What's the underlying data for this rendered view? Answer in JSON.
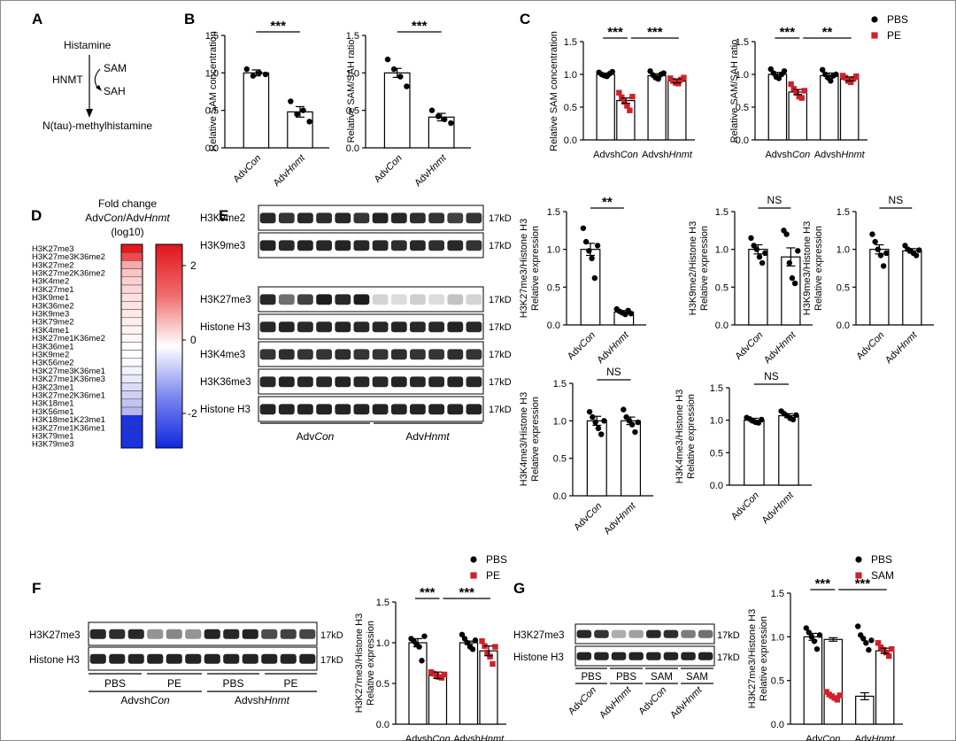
{
  "panels": {
    "A": {
      "label": "A",
      "histamine": "Histamine",
      "hnmt": "HNMT",
      "sam": "SAM",
      "sah": "SAH",
      "product": "N(tau)-methylhistamine"
    },
    "B": {
      "label": "B"
    },
    "C": {
      "label": "C"
    },
    "D": {
      "label": "D",
      "title_line1": "Fold change",
      "title_line2_a": "Adv",
      "title_line2_b": "Con",
      "title_line2_c": "/Adv",
      "title_line2_d": "Hnmt",
      "title_line3": "(log10)",
      "scale_ticks": [
        "2",
        "0",
        "-2"
      ]
    },
    "E": {
      "label": "E",
      "group_left_a": "Adv",
      "group_left_b": "Con",
      "group_right_a": "Adv",
      "group_right_b": "Hnmt"
    },
    "F": {
      "label": "F",
      "group_left_a": "Advsh",
      "group_left_b": "Con",
      "group_right_a": "Advsh",
      "group_right_b": "Hnmt",
      "treat": [
        "PBS",
        "PE",
        "PBS",
        "PE"
      ]
    },
    "G": {
      "label": "G",
      "treat": [
        "PBS",
        "PBS",
        "SAM",
        "SAM"
      ],
      "xgroups": [
        [
          "Adv",
          "Con"
        ],
        [
          "Adv",
          "Hnmt"
        ],
        [
          "Adv",
          "Con"
        ],
        [
          "Adv",
          "Hnmt"
        ]
      ]
    }
  },
  "legends": {
    "C": [
      "PBS",
      "PE"
    ],
    "F": [
      "PBS",
      "PE"
    ],
    "G": [
      "PBS",
      "SAM"
    ]
  },
  "colors": {
    "black": "#000000",
    "red": "#d0202a",
    "heat_high": "#d7191c",
    "heat_low": "#1f32d8"
  },
  "blots": {
    "E": [
      "H3K9me2",
      "H3K9me3",
      "H3K27me3",
      "Histone H3",
      "H3K4me3",
      "H3K36me3",
      "Histone H3"
    ],
    "F": [
      "H3K27me3",
      "Histone H3"
    ],
    "G": [
      "H3K27me3",
      "Histone H3"
    ],
    "kd": "17kD"
  },
  "heatmap_rows": [
    "H3K27me3",
    "H3K27me3K36me2",
    "H3K27me2",
    "H3K27me2K36me2",
    "H3K4me2",
    "H3K27me1",
    "H3K9me1",
    "H3K36me2",
    "H3K9me3",
    "H3K79me2",
    "H3K4me1",
    "H3K27me1K36me2",
    "H3K36me1",
    "H3K9me2",
    "H3K56me2",
    "H3K27me3K36me1",
    "H3K27me1K36me3",
    "H3K23me1",
    "H3K27me2K36me1",
    "H3K18me1",
    "H3K56me1",
    "H3K18me1K23me1",
    "H3K27me1K36me1",
    "H3K79me1",
    "H3K79me3"
  ],
  "chart_data": [
    {
      "id": "B1",
      "type": "bar",
      "ylabel": "Relative SAM concentration",
      "ylim": [
        0,
        1.5
      ],
      "yticks": [
        "0.0",
        "0.5",
        "1.0",
        "1.5"
      ],
      "categories": [
        [
          "Adv",
          "Con"
        ],
        [
          "Adv",
          "Hnmt"
        ]
      ],
      "values": [
        1.0,
        0.48
      ],
      "sem": [
        0.04,
        0.07
      ],
      "points": [
        [
          1.05,
          0.96,
          1.0,
          0.98
        ],
        [
          0.62,
          0.45,
          0.5,
          0.35
        ]
      ],
      "significance": "***"
    },
    {
      "id": "B2",
      "type": "bar",
      "ylabel": "Relative SAM/SAH ratio",
      "ylim": [
        0,
        1.5
      ],
      "yticks": [
        "0.0",
        "0.5",
        "1.0",
        "1.5"
      ],
      "categories": [
        [
          "Adv",
          "Con"
        ],
        [
          "Adv",
          "Hnmt"
        ]
      ],
      "values": [
        1.0,
        0.41
      ],
      "sem": [
        0.06,
        0.05
      ],
      "points": [
        [
          1.18,
          1.05,
          0.95,
          0.82
        ],
        [
          0.5,
          0.42,
          0.38,
          0.33
        ]
      ],
      "significance": "***"
    },
    {
      "id": "C1",
      "type": "bar",
      "ylabel": "Relative SAM concentration",
      "ylim": [
        0,
        1.5
      ],
      "yticks": [
        "0.0",
        "0.5",
        "1.0",
        "1.5"
      ],
      "groups": [
        [
          "Advsh",
          "Con"
        ],
        [
          "Advsh",
          "Hnmt"
        ]
      ],
      "series": [
        {
          "name": "PBS",
          "values": [
            1.0,
            0.98
          ]
        },
        {
          "name": "PE",
          "values": [
            0.6,
            0.9
          ]
        }
      ],
      "sem": [
        0.02,
        0.04,
        0.03,
        0.03
      ],
      "points": [
        [
          1.03,
          1.0,
          0.98,
          0.97,
          1.01,
          1.04
        ],
        [
          0.72,
          0.65,
          0.58,
          0.52,
          0.45,
          0.66
        ],
        [
          1.05,
          0.99,
          0.95,
          0.93,
          1.0,
          1.02
        ],
        [
          0.94,
          0.9,
          0.87,
          0.86,
          0.92,
          0.95
        ]
      ],
      "significance": [
        "***",
        "***"
      ]
    },
    {
      "id": "C2",
      "type": "bar",
      "ylabel": "Relative SAM/SAH ratio",
      "ylim": [
        0,
        1.5
      ],
      "yticks": [
        "0.0",
        "0.5",
        "1.0",
        "1.5"
      ],
      "groups": [
        [
          "Advsh",
          "Con"
        ],
        [
          "Advsh",
          "Hnmt"
        ]
      ],
      "series": [
        {
          "name": "PBS",
          "values": [
            1.0,
            0.98
          ]
        },
        {
          "name": "PE",
          "values": [
            0.73,
            0.93
          ]
        }
      ],
      "sem": [
        0.03,
        0.04,
        0.04,
        0.03
      ],
      "points": [
        [
          1.08,
          1.02,
          0.96,
          0.94,
          1.0,
          1.05
        ],
        [
          0.85,
          0.78,
          0.72,
          0.66,
          0.64,
          0.75
        ],
        [
          1.07,
          1.0,
          0.95,
          0.9,
          0.98,
          1.0
        ],
        [
          0.98,
          0.95,
          0.9,
          0.88,
          0.93,
          0.97
        ]
      ],
      "significance": [
        "***",
        "**"
      ]
    },
    {
      "id": "E1",
      "type": "bar",
      "ylabel": "H3K27me3/Histone H3",
      "ylabel2": "Relative expression",
      "ylim": [
        0,
        1.5
      ],
      "yticks": [
        "0.0",
        "0.5",
        "1.0",
        "1.5"
      ],
      "categories": [
        [
          "Adv",
          "Con"
        ],
        [
          "Adv",
          "Hnmt"
        ]
      ],
      "values": [
        1.0,
        0.17
      ],
      "sem": [
        0.08,
        0.02
      ],
      "points": [
        [
          1.28,
          1.1,
          0.98,
          0.88,
          0.62,
          1.05
        ],
        [
          0.21,
          0.18,
          0.16,
          0.14,
          0.19,
          0.15
        ]
      ],
      "significance": "**"
    },
    {
      "id": "E2",
      "type": "bar",
      "ylabel": "H3K9me2/Histone H3",
      "ylabel2": "Relative expression",
      "ylim": [
        0,
        1.5
      ],
      "yticks": [
        "0.0",
        "0.5",
        "1.0",
        "1.5"
      ],
      "categories": [
        [
          "Adv",
          "Con"
        ],
        [
          "Adv",
          "Hnmt"
        ]
      ],
      "values": [
        1.0,
        0.9
      ],
      "sem": [
        0.06,
        0.12
      ],
      "points": [
        [
          1.15,
          1.05,
          1.0,
          0.9,
          0.82,
          0.95
        ],
        [
          1.25,
          1.2,
          0.82,
          0.62,
          0.55,
          0.98
        ]
      ],
      "significance": "NS"
    },
    {
      "id": "E3",
      "type": "bar",
      "ylabel": "H3K9me3/Histone H3",
      "ylabel2": "Relative expression",
      "ylim": [
        0,
        1.5
      ],
      "yticks": [
        "0.0",
        "0.5",
        "1.0",
        "1.5"
      ],
      "categories": [
        [
          "Adv",
          "Con"
        ],
        [
          "Adv",
          "Hnmt"
        ]
      ],
      "values": [
        1.0,
        0.98
      ],
      "sem": [
        0.06,
        0.03
      ],
      "points": [
        [
          1.2,
          1.1,
          1.0,
          0.92,
          0.78,
          0.95
        ],
        [
          1.05,
          1.0,
          0.98,
          0.95,
          0.92,
          0.99
        ]
      ],
      "significance": "NS"
    },
    {
      "id": "E4",
      "type": "bar",
      "ylabel": "H3K4me3/Histone H3",
      "ylabel2": "Relative expression",
      "ylim": [
        0,
        1.5
      ],
      "yticks": [
        "0.0",
        "0.5",
        "1.0",
        "1.5"
      ],
      "categories": [
        [
          "Adv",
          "Con"
        ],
        [
          "Adv",
          "Hnmt"
        ]
      ],
      "values": [
        1.0,
        1.0
      ],
      "sem": [
        0.06,
        0.05
      ],
      "points": [
        [
          1.12,
          1.05,
          0.98,
          0.9,
          0.82,
          1.0
        ],
        [
          1.15,
          1.05,
          1.0,
          0.95,
          0.85,
          0.98
        ]
      ],
      "significance": "NS"
    },
    {
      "id": "E5",
      "type": "bar",
      "ylabel": "H3K4me3/Histone H3",
      "ylabel2": "Relative expression",
      "ylim": [
        0,
        1.5
      ],
      "yticks": [
        "0.0",
        "0.5",
        "1.0",
        "1.5"
      ],
      "categories": [
        [
          "Adv",
          "Con"
        ],
        [
          "Adv",
          "Hnmt"
        ]
      ],
      "values": [
        1.0,
        1.07
      ],
      "sem": [
        0.03,
        0.03
      ],
      "points": [
        [
          1.04,
          1.02,
          0.99,
          0.97,
          0.96,
          1.01
        ],
        [
          1.14,
          1.1,
          1.07,
          1.03,
          1.01,
          1.08
        ]
      ],
      "significance": "NS"
    },
    {
      "id": "F1",
      "type": "bar",
      "ylabel": "H3K27me3/Histone H3",
      "ylabel2": "Relative expression",
      "ylim": [
        0,
        1.5
      ],
      "yticks": [
        "0.0",
        "0.5",
        "1.0",
        "1.5"
      ],
      "groups": [
        [
          "Advsh",
          "Con"
        ],
        [
          "Advsh",
          "Hnmt"
        ]
      ],
      "series": [
        {
          "name": "PBS",
          "values": [
            1.0,
            1.0
          ]
        },
        {
          "name": "PE",
          "values": [
            0.6,
            0.9
          ]
        }
      ],
      "sem": [
        0.05,
        0.04,
        0.02,
        0.06
      ],
      "points": [
        [
          1.05,
          1.02,
          0.98,
          0.95,
          0.78,
          1.08
        ],
        [
          0.64,
          0.62,
          0.6,
          0.58,
          0.57,
          0.61
        ],
        [
          1.1,
          1.05,
          1.0,
          0.95,
          0.92,
          1.03
        ],
        [
          1.02,
          0.96,
          0.88,
          0.83,
          0.74,
          0.95
        ]
      ],
      "significance": [
        "***",
        "***"
      ]
    },
    {
      "id": "G1",
      "type": "bar",
      "ylabel": "H3K27me3/Histone H3",
      "ylabel2": "Relative expression",
      "ylim": [
        0,
        1.5
      ],
      "yticks": [
        "0.0",
        "0.5",
        "1.0",
        "1.5"
      ],
      "groups": [
        [
          "Adv",
          "Con"
        ],
        [
          "Adv",
          "Hnmt"
        ]
      ],
      "series": [
        {
          "name": "PBS",
          "values": [
            1.0,
            0.32
          ]
        },
        {
          "name": "SAM",
          "values": [
            0.97,
            0.84
          ]
        }
      ],
      "sem": [
        0.04,
        0.02,
        0.04,
        0.03
      ],
      "points": [
        [
          1.1,
          1.05,
          1.0,
          0.95,
          0.86,
          1.02
        ],
        [
          0.37,
          0.34,
          0.32,
          0.3,
          0.28,
          0.33
        ],
        [
          1.12,
          1.02,
          0.98,
          0.93,
          0.85,
          0.96
        ],
        [
          0.93,
          0.88,
          0.85,
          0.82,
          0.78,
          0.86
        ]
      ],
      "significance": [
        "***",
        "***"
      ]
    }
  ]
}
